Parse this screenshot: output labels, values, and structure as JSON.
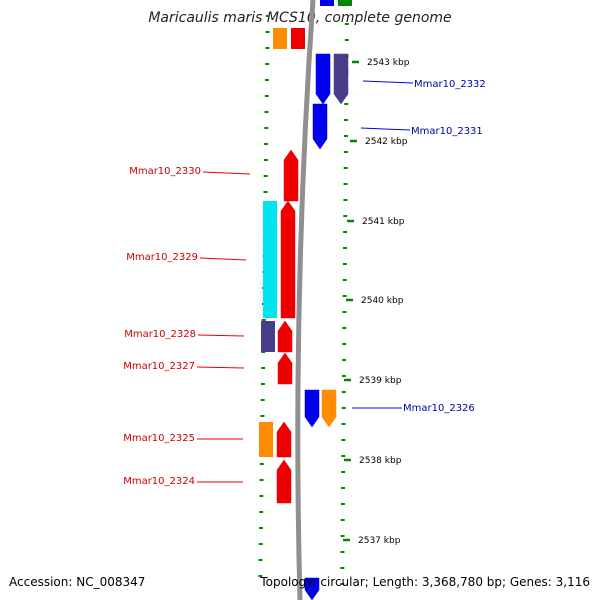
{
  "title": "Maricaulis maris MCS10, complete genome",
  "accession_text": "Accession: NC_008347",
  "summary_text": "Topology: circular; Length: 3,368,780 bp; Genes: 3,116",
  "colors": {
    "red": "#ee0000",
    "blue": "#0000ee",
    "orange": "#ff8c00",
    "cyan": "#00e5ee",
    "slate": "#483d8b",
    "green_tick": "#008800",
    "backbone": "#909090",
    "label_red": "#cc0000",
    "label_blue": "#0000aa"
  },
  "scale": {
    "unit": "kbp",
    "ticks": [
      {
        "label": "2543 kbp",
        "kbp": 2543
      },
      {
        "label": "2542 kbp",
        "kbp": 2542
      },
      {
        "label": "2541 kbp",
        "kbp": 2541
      },
      {
        "label": "2540 kbp",
        "kbp": 2540
      },
      {
        "label": "2539 kbp",
        "kbp": 2539
      },
      {
        "label": "2538 kbp",
        "kbp": 2538
      },
      {
        "label": "2537 kbp",
        "kbp": 2537
      }
    ]
  },
  "gene_labels": [
    {
      "name": "Mmar10_2332",
      "strand": "forward"
    },
    {
      "name": "Mmar10_2331",
      "strand": "forward"
    },
    {
      "name": "Mmar10_2330",
      "strand": "reverse"
    },
    {
      "name": "Mmar10_2329",
      "strand": "reverse"
    },
    {
      "name": "Mmar10_2328",
      "strand": "reverse"
    },
    {
      "name": "Mmar10_2327",
      "strand": "reverse"
    },
    {
      "name": "Mmar10_2326",
      "strand": "forward"
    },
    {
      "name": "Mmar10_2325",
      "strand": "reverse"
    },
    {
      "name": "Mmar10_2324",
      "strand": "reverse"
    }
  ]
}
